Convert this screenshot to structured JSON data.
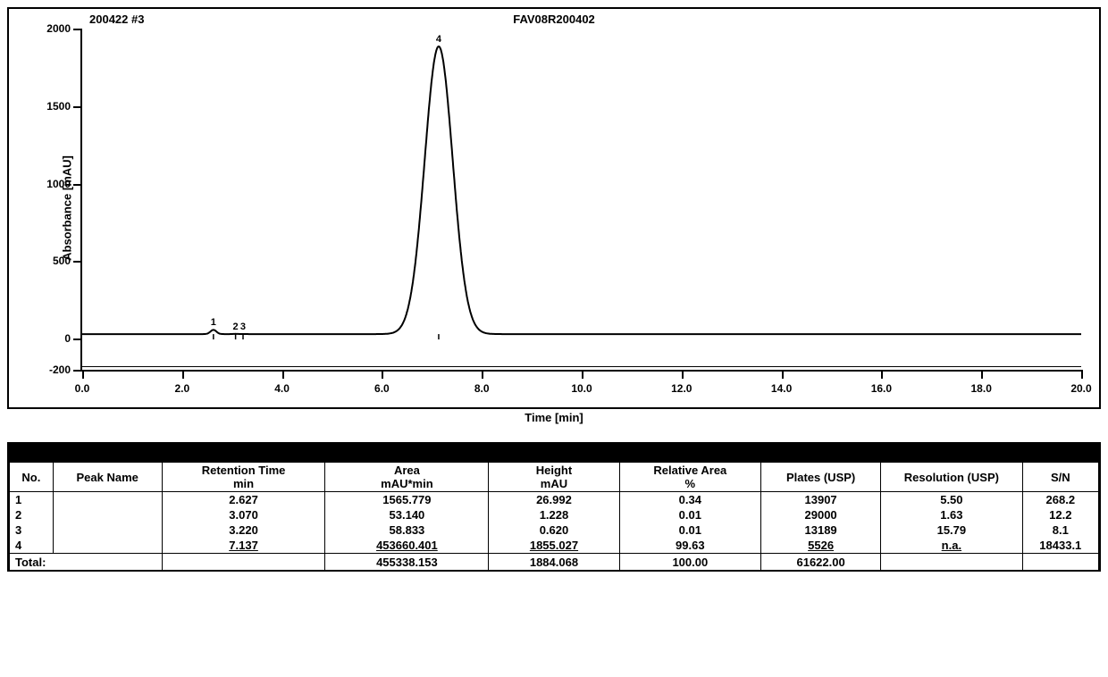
{
  "chart": {
    "type": "line",
    "title_left": "200422 #3",
    "title_center": "FAV08R200402",
    "ylabel": "Absorbance [mAU]",
    "xlabel": "Time [min]",
    "xlim": [
      0.0,
      20.0
    ],
    "ylim": [
      -200,
      2000
    ],
    "xtick_step": 2.0,
    "yticks": [
      -200,
      0,
      500,
      1000,
      1500,
      2000
    ],
    "xticks": [
      0.0,
      2.0,
      4.0,
      6.0,
      8.0,
      10.0,
      12.0,
      14.0,
      16.0,
      18.0,
      20.0
    ],
    "line_color": "#000000",
    "line_width": 2,
    "background_color": "#ffffff",
    "peaks": [
      {
        "id": "1",
        "rt": 2.627,
        "height": 26.992,
        "half_width": 0.06
      },
      {
        "id": "2",
        "rt": 3.07,
        "height": 1.228,
        "half_width": 0.05
      },
      {
        "id": "3",
        "rt": 3.22,
        "height": 0.62,
        "half_width": 0.05
      },
      {
        "id": "4",
        "rt": 7.137,
        "height": 1855.027,
        "half_width": 0.28
      }
    ],
    "baseline": 30,
    "label_fontsize": 13,
    "tick_fontsize": 12
  },
  "table": {
    "columns": [
      "No.",
      "Peak Name",
      "Retention Time\nmin",
      "Area\nmAU*min",
      "Height\nmAU",
      "Relative Area\n%",
      "Plates (USP)",
      "Resolution (USP)",
      "S/N"
    ],
    "col_widths": [
      "4%",
      "10%",
      "15%",
      "15%",
      "12%",
      "13%",
      "11%",
      "13%",
      "7%"
    ],
    "rows": [
      [
        "1",
        "",
        "2.627",
        "1565.779",
        "26.992",
        "0.34",
        "13907",
        "5.50",
        "268.2"
      ],
      [
        "2",
        "",
        "3.070",
        "53.140",
        "1.228",
        "0.01",
        "29000",
        "1.63",
        "12.2"
      ],
      [
        "3",
        "",
        "3.220",
        "58.833",
        "0.620",
        "0.01",
        "13189",
        "15.79",
        "8.1"
      ],
      [
        "4",
        "",
        "7.137",
        "453660.401",
        "1855.027",
        "99.63",
        "5526",
        "n.a.",
        "18433.1"
      ]
    ],
    "total_label": "Total:",
    "total": [
      "",
      "",
      "",
      "455338.153",
      "1884.068",
      "100.00",
      "61622.00",
      "",
      ""
    ]
  }
}
